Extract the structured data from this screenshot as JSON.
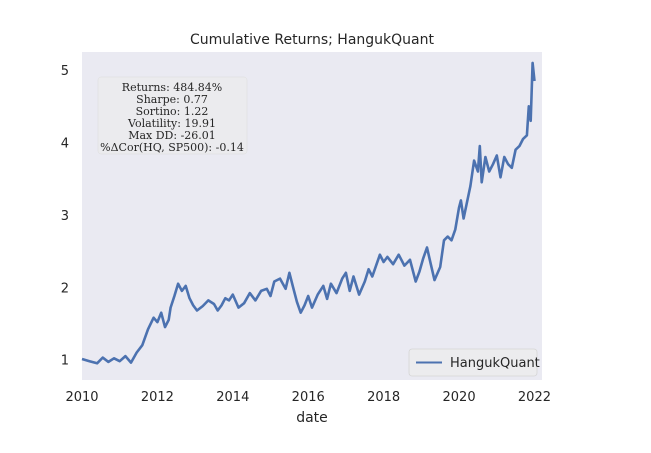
{
  "chart_data": {
    "type": "line",
    "title": "Cumulative Returns; HangukQuant",
    "xlabel": "date",
    "ylabel": "",
    "xlim": [
      2010,
      2022.2
    ],
    "ylim": [
      0.72,
      5.25
    ],
    "grid": false,
    "legend_position": "lower-right",
    "colors": {
      "background": "#EAEAF2",
      "series": "#4C72B0"
    },
    "x_ticks": [
      {
        "value": 2010,
        "label": "2010"
      },
      {
        "value": 2012,
        "label": "2012"
      },
      {
        "value": 2014,
        "label": "2014"
      },
      {
        "value": 2016,
        "label": "2016"
      },
      {
        "value": 2018,
        "label": "2018"
      },
      {
        "value": 2020,
        "label": "2020"
      },
      {
        "value": 2022,
        "label": "2022"
      }
    ],
    "y_ticks": [
      {
        "value": 1,
        "label": "1"
      },
      {
        "value": 2,
        "label": "2"
      },
      {
        "value": 3,
        "label": "3"
      },
      {
        "value": 4,
        "label": "4"
      },
      {
        "value": 5,
        "label": "5"
      }
    ],
    "stats_box": [
      "Returns: 484.84%",
      "Sharpe: 0.77",
      "Sortino: 1.22",
      "Volatility: 19.91",
      "Max DD: -26.01",
      "%ΔCor(HQ, SP500): -0.14"
    ],
    "series": [
      {
        "name": "HangukQuant",
        "x": [
          2010.0,
          2010.2,
          2010.4,
          2010.55,
          2010.7,
          2010.85,
          2011.0,
          2011.15,
          2011.3,
          2011.45,
          2011.6,
          2011.75,
          2011.9,
          2012.0,
          2012.1,
          2012.2,
          2012.3,
          2012.35,
          2012.45,
          2012.55,
          2012.65,
          2012.75,
          2012.85,
          2012.95,
          2013.05,
          2013.2,
          2013.35,
          2013.5,
          2013.6,
          2013.7,
          2013.8,
          2013.9,
          2014.0,
          2014.15,
          2014.3,
          2014.45,
          2014.6,
          2014.75,
          2014.9,
          2015.0,
          2015.1,
          2015.25,
          2015.4,
          2015.5,
          2015.6,
          2015.7,
          2015.8,
          2015.9,
          2016.0,
          2016.1,
          2016.25,
          2016.4,
          2016.5,
          2016.6,
          2016.75,
          2016.9,
          2017.0,
          2017.1,
          2017.2,
          2017.35,
          2017.5,
          2017.6,
          2017.7,
          2017.8,
          2017.9,
          2018.0,
          2018.1,
          2018.25,
          2018.4,
          2018.55,
          2018.7,
          2018.85,
          2018.95,
          2019.05,
          2019.15,
          2019.25,
          2019.35,
          2019.5,
          2019.6,
          2019.7,
          2019.8,
          2019.9,
          2020.0,
          2020.05,
          2020.12,
          2020.2,
          2020.3,
          2020.4,
          2020.5,
          2020.55,
          2020.6,
          2020.7,
          2020.8,
          2020.9,
          2021.0,
          2021.1,
          2021.2,
          2021.3,
          2021.4,
          2021.5,
          2021.6,
          2021.7,
          2021.8,
          2021.85,
          2021.9,
          2021.95,
          2022.0
        ],
        "values": [
          1.01,
          0.98,
          0.95,
          1.03,
          0.97,
          1.02,
          0.98,
          1.05,
          0.96,
          1.1,
          1.2,
          1.42,
          1.58,
          1.52,
          1.65,
          1.45,
          1.55,
          1.72,
          1.88,
          2.05,
          1.95,
          2.02,
          1.85,
          1.75,
          1.68,
          1.74,
          1.82,
          1.77,
          1.68,
          1.75,
          1.85,
          1.82,
          1.9,
          1.72,
          1.78,
          1.92,
          1.82,
          1.95,
          1.98,
          1.88,
          2.08,
          2.12,
          1.98,
          2.2,
          2.0,
          1.8,
          1.65,
          1.75,
          1.88,
          1.72,
          1.9,
          2.02,
          1.84,
          2.05,
          1.92,
          2.12,
          2.2,
          1.95,
          2.15,
          1.9,
          2.08,
          2.25,
          2.15,
          2.3,
          2.45,
          2.35,
          2.42,
          2.32,
          2.45,
          2.3,
          2.38,
          2.08,
          2.22,
          2.4,
          2.55,
          2.32,
          2.1,
          2.28,
          2.65,
          2.7,
          2.65,
          2.8,
          3.1,
          3.2,
          2.95,
          3.15,
          3.4,
          3.75,
          3.6,
          3.95,
          3.45,
          3.8,
          3.6,
          3.7,
          3.82,
          3.52,
          3.8,
          3.7,
          3.65,
          3.9,
          3.95,
          4.05,
          4.1,
          4.5,
          4.3,
          5.1,
          4.85
        ]
      }
    ]
  }
}
